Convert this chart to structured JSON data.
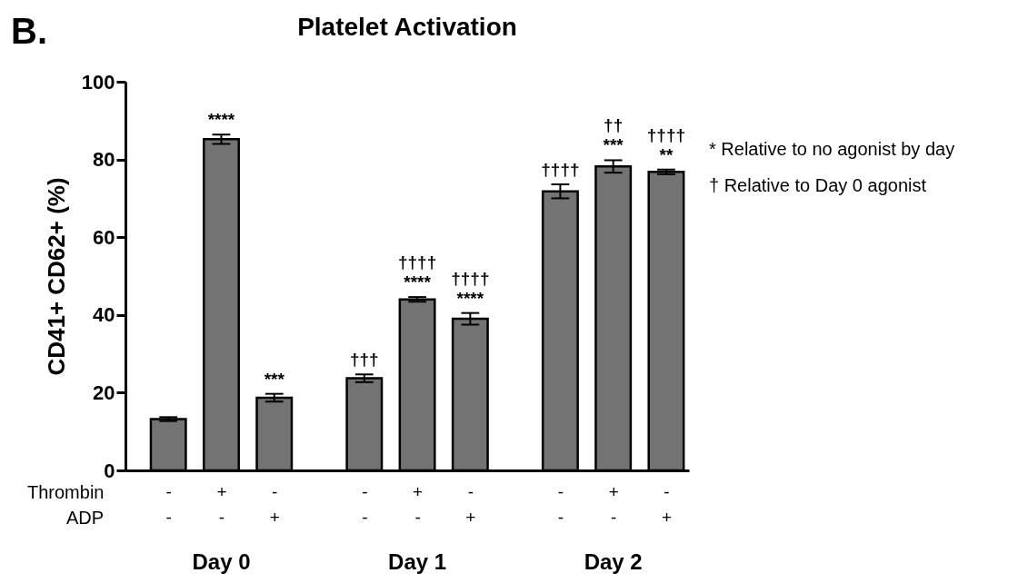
{
  "chart_data": {
    "type": "bar",
    "title": "Platelet Activation",
    "ylabel": "CD41+ CD62+ (%)",
    "categories": [
      "-\n-",
      "+\n-",
      "-\n+",
      "-\n-",
      "+\n-",
      "-\n+",
      "-\n-",
      "+\n-",
      "-\n+"
    ],
    "values": [
      13.2,
      85.2,
      18.7,
      23.7,
      44.0,
      39.0,
      71.8,
      78.2,
      76.8
    ],
    "errors": [
      0.5,
      1.2,
      1.0,
      1.0,
      0.6,
      1.5,
      1.8,
      1.6,
      0.6
    ],
    "value_labels": [
      null,
      "****",
      "***",
      "†††",
      "††††\n****",
      "††††\n****",
      "††††",
      "††\n***",
      "††††\n**"
    ],
    "color": "#737373",
    "ylim": [
      0,
      100
    ],
    "yticks": [
      0,
      20,
      40,
      60,
      80,
      100
    ],
    "grid": false,
    "annotations": [
      "B.",
      "Thrombin",
      "ADP",
      "Day 0",
      "Day 1",
      "Day 2",
      "* Relative to no agonist by day",
      "† Relative to Day 0 agonist"
    ]
  }
}
